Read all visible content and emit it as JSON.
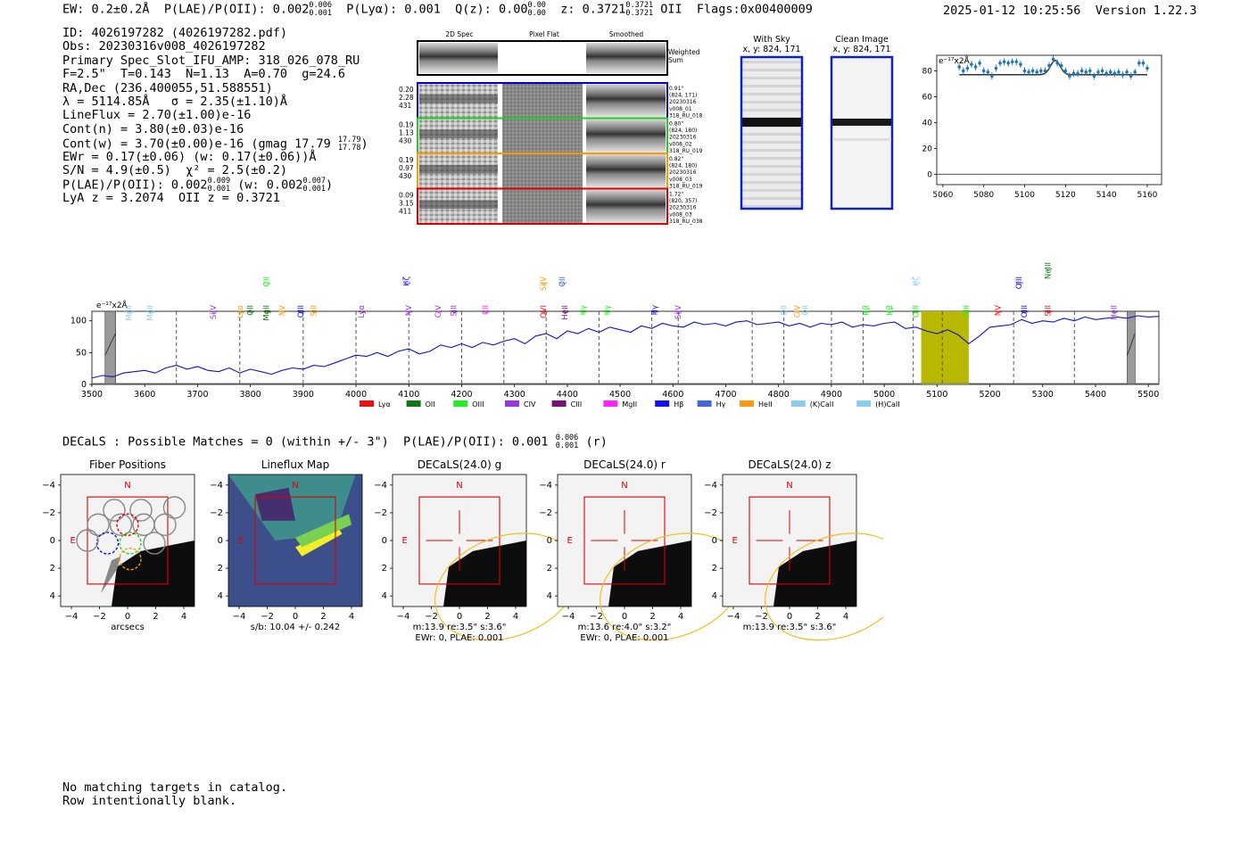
{
  "header": {
    "ew": "EW: 0.2±0.2Å",
    "plae_label": "P(LAE)/P(OII): 0.002",
    "plae_hi": "0.006",
    "plae_lo": "0.001",
    "plya": "P(Lyα): 0.001",
    "qz_label": "Q(z): 0.00",
    "qz_hi": "0.00",
    "qz_lo": "0.00",
    "z_label": "z: 0.3721",
    "z_hi": "0.3721",
    "z_lo": "0.3721",
    "z_line": "OII",
    "flags": "Flags:0x00400009",
    "timestamp": "2025-01-12 10:25:56",
    "version": "Version 1.22.3"
  },
  "info": {
    "id": "ID: 4026197282 (4026197282.pdf)",
    "obs": "Obs: 20230316v008_4026197282",
    "primary": "Primary Spec_Slot_IFU_AMP: 318_026_078_RU",
    "params": "F=2.5\"  T=0.143  N=1.13  A=0.70  g=24.6",
    "radec": "RA,Dec (236.400055,51.588551)",
    "lambda": "λ = 5114.85Å   σ = 2.35(±1.10)Å",
    "lineflux": "LineFlux = 2.70(±1.00)e-16",
    "contn": "Cont(n) = 3.80(±0.03)e-16",
    "contw": "Cont(w) = 3.70(±0.00)e-16 (gmag 17.79",
    "contw_hi": "17.79",
    "contw_lo": "17.78",
    "contw_end": ")",
    "ewr": "EWr = 0.17(±0.06) (w: 0.17(±0.06))Å",
    "sn": "S/N = 4.9(±0.5)  χ² = 2.5(±0.2)",
    "plae": "P(LAE)/P(OII): 0.002",
    "plae_hi": "0.009",
    "plae_lo": "0.001",
    "plae_w": "(w: 0.002",
    "plae_w_hi": "0.007",
    "plae_w_lo": "0.001",
    "plae_end": ")",
    "lyaz": "LyA z = 3.2074  OII z = 0.3721"
  },
  "cutouts": {
    "col_2d": "2D Spec",
    "col_flat": "Pixel Flat",
    "col_smooth": "Smoothed",
    "weighted": "Weighted",
    "sum": "Sum",
    "rows": [
      {
        "left": [
          "0.20",
          "2.28",
          "431"
        ],
        "right": [
          "0.91\"",
          "(824, 171)",
          "20230316",
          "v008_01",
          "318_RU_018"
        ],
        "color": "#0000cc"
      },
      {
        "left": [
          "0.19",
          "1.13",
          "430"
        ],
        "right": [
          "0.80\"",
          "(824, 180)",
          "20230316",
          "v008_02",
          "318_RU_019"
        ],
        "color": "#22cc22"
      },
      {
        "left": [
          "0.19",
          "0.97",
          "430"
        ],
        "right": [
          "0.82\"",
          "(824, 180)",
          "20230316",
          "v008_03",
          "318_RU_019"
        ],
        "color": "#ff9900"
      },
      {
        "left": [
          "0.09",
          "3.15",
          "411"
        ],
        "right": [
          "1.72\"",
          "(820, 357)",
          "20230316",
          "v008_03",
          "318_RU_038"
        ],
        "color": "#dd0000"
      }
    ]
  },
  "sky_panels": {
    "with_sky": "With Sky",
    "clean": "Clean Image",
    "coords": "x, y: 824, 171"
  },
  "zoom_chart": {
    "unit_label": "e⁻¹⁷x2Å",
    "x_ticks": [
      "5060",
      "5080",
      "5100",
      "5120",
      "5140",
      "5160"
    ],
    "y_ticks": [
      "0",
      "20",
      "40",
      "60",
      "80"
    ],
    "points": [
      [
        5068,
        83
      ],
      [
        5070,
        80
      ],
      [
        5072,
        82
      ],
      [
        5074,
        85
      ],
      [
        5076,
        83
      ],
      [
        5078,
        86
      ],
      [
        5080,
        80
      ],
      [
        5082,
        79
      ],
      [
        5084,
        76
      ],
      [
        5086,
        82
      ],
      [
        5088,
        86
      ],
      [
        5090,
        87
      ],
      [
        5092,
        86
      ],
      [
        5094,
        87
      ],
      [
        5096,
        87
      ],
      [
        5098,
        85
      ],
      [
        5100,
        80
      ],
      [
        5102,
        79
      ],
      [
        5104,
        80
      ],
      [
        5106,
        79
      ],
      [
        5108,
        80
      ],
      [
        5110,
        80
      ],
      [
        5112,
        84
      ],
      [
        5114,
        89
      ],
      [
        5116,
        86
      ],
      [
        5118,
        84
      ],
      [
        5120,
        80
      ],
      [
        5122,
        76
      ],
      [
        5124,
        78
      ],
      [
        5126,
        78
      ],
      [
        5128,
        80
      ],
      [
        5130,
        79
      ],
      [
        5132,
        80
      ],
      [
        5134,
        76
      ],
      [
        5136,
        79
      ],
      [
        5138,
        80
      ],
      [
        5140,
        78
      ],
      [
        5142,
        79
      ],
      [
        5144,
        78
      ],
      [
        5146,
        79
      ],
      [
        5148,
        77
      ],
      [
        5150,
        79
      ],
      [
        5152,
        76
      ],
      [
        5154,
        79
      ],
      [
        5156,
        86
      ],
      [
        5158,
        86
      ],
      [
        5160,
        82
      ]
    ],
    "fit_base": 77,
    "fit_peak": 88,
    "fit_center": 5115,
    "fit_sigma": 2.35
  },
  "chart_data": [
    {
      "type": "line",
      "title": "",
      "ylabel": "e⁻¹⁷x2Å",
      "xlim": [
        3500,
        5520
      ],
      "ylim": [
        0,
        115
      ],
      "x_ticks": [
        "3500",
        "3600",
        "3700",
        "3800",
        "3900",
        "4000",
        "4100",
        "4200",
        "4300",
        "4400",
        "4500",
        "4600",
        "4700",
        "4800",
        "4900",
        "5000",
        "5100",
        "5200",
        "5300",
        "5400",
        "5500"
      ],
      "y_ticks": [
        "0",
        "50",
        "100"
      ],
      "spectrum_x": [
        3500,
        3520,
        3540,
        3560,
        3580,
        3600,
        3620,
        3640,
        3660,
        3680,
        3700,
        3720,
        3740,
        3760,
        3780,
        3800,
        3820,
        3840,
        3860,
        3880,
        3900,
        3920,
        3940,
        3960,
        3980,
        4000,
        4020,
        4040,
        4060,
        4080,
        4100,
        4120,
        4140,
        4160,
        4180,
        4200,
        4220,
        4240,
        4260,
        4280,
        4300,
        4320,
        4340,
        4360,
        4380,
        4400,
        4420,
        4440,
        4460,
        4480,
        4500,
        4520,
        4540,
        4560,
        4580,
        4600,
        4620,
        4640,
        4660,
        4680,
        4700,
        4720,
        4740,
        4760,
        4780,
        4800,
        4820,
        4840,
        4860,
        4880,
        4900,
        4920,
        4940,
        4960,
        4980,
        5000,
        5020,
        5040,
        5060,
        5080,
        5100,
        5120,
        5140,
        5160,
        5180,
        5200,
        5220,
        5240,
        5260,
        5280,
        5300,
        5320,
        5340,
        5360,
        5380,
        5400,
        5420,
        5440,
        5460,
        5480,
        5500,
        5520
      ],
      "spectrum_y": [
        10,
        14,
        12,
        18,
        20,
        22,
        18,
        26,
        30,
        24,
        28,
        22,
        20,
        26,
        18,
        24,
        20,
        16,
        22,
        26,
        24,
        30,
        28,
        34,
        40,
        46,
        44,
        50,
        44,
        52,
        56,
        48,
        52,
        62,
        58,
        64,
        58,
        66,
        62,
        68,
        72,
        64,
        76,
        80,
        72,
        84,
        80,
        88,
        82,
        90,
        86,
        82,
        92,
        88,
        96,
        92,
        90,
        98,
        94,
        96,
        92,
        98,
        100,
        94,
        96,
        98,
        92,
        96,
        90,
        96,
        94,
        98,
        90,
        94,
        92,
        96,
        98,
        88,
        90,
        84,
        80,
        86,
        78,
        64,
        76,
        90,
        92,
        94,
        102,
        96,
        100,
        98,
        104,
        100,
        106,
        102,
        104,
        106,
        104,
        108,
        106,
        107
      ],
      "shaded_bands": [
        {
          "from": 3525,
          "to": 3545,
          "kind": "hatch"
        },
        {
          "from": 5070,
          "to": 5160,
          "kind": "emission"
        },
        {
          "from": 5460,
          "to": 5475,
          "kind": "hatch"
        }
      ],
      "legend": [
        {
          "label": "Lyα",
          "color": "#ee1111"
        },
        {
          "label": "OII",
          "color": "#117711"
        },
        {
          "label": "OIII",
          "color": "#22ee22"
        },
        {
          "label": "CIV",
          "color": "#9933dd"
        },
        {
          "label": "CIII",
          "color": "#771177"
        },
        {
          "label": "MgII",
          "color": "#ff22ff"
        },
        {
          "label": "Hβ",
          "color": "#1111ee"
        },
        {
          "label": "Hγ",
          "color": "#4466dd"
        },
        {
          "label": "HeII",
          "color": "#ff9911"
        },
        {
          "label": "(K)CaII",
          "color": "#88ccee"
        },
        {
          "label": "(H)CaII",
          "color": "#88ccee"
        }
      ],
      "line_markers": [
        {
          "label": "MgII",
          "x": 3570,
          "color": "#88ccee",
          "row": 1
        },
        {
          "label": "MgII",
          "x": 3610,
          "color": "#88ccee",
          "row": 1
        },
        {
          "label": "SiIV",
          "x": 3730,
          "color": "#9933dd",
          "row": 1
        },
        {
          "label": "Lyα",
          "x": 3780,
          "color": "#ff9911",
          "row": 1
        },
        {
          "label": "OII",
          "x": 3800,
          "color": "#117711",
          "row": 1
        },
        {
          "label": "MgII",
          "x": 3830,
          "color": "#117711",
          "row": 1
        },
        {
          "label": "OII",
          "x": 3830,
          "color": "#22ee22",
          "row": 3
        },
        {
          "label": "NV",
          "x": 3860,
          "color": "#ff9911",
          "row": 1
        },
        {
          "label": "OIII",
          "x": 3895,
          "color": "#1111ee",
          "row": 1
        },
        {
          "label": "SiII",
          "x": 3920,
          "color": "#ff9911",
          "row": 1
        },
        {
          "label": "Lyα",
          "x": 4010,
          "color": "#9933dd",
          "row": 1
        },
        {
          "label": "NV",
          "x": 4100,
          "color": "#9933dd",
          "row": 1
        },
        {
          "label": "Hζ",
          "x": 4095,
          "color": "#1111ee",
          "row": 3
        },
        {
          "label": "CIV",
          "x": 4155,
          "color": "#9933dd",
          "row": 1
        },
        {
          "label": "SiII",
          "x": 4185,
          "color": "#9933dd",
          "row": 1
        },
        {
          "label": "CII",
          "x": 4245,
          "color": "#ff22ff",
          "row": 1
        },
        {
          "label": "OVI",
          "x": 4355,
          "color": "#ee1111",
          "row": 1
        },
        {
          "label": "SiIV",
          "x": 4355,
          "color": "#ff9911",
          "row": 3
        },
        {
          "label": "OII",
          "x": 4390,
          "color": "#4466dd",
          "row": 3
        },
        {
          "label": "HeII",
          "x": 4395,
          "color": "#771177",
          "row": 1
        },
        {
          "label": "Hγ",
          "x": 4430,
          "color": "#22ee22",
          "row": 1
        },
        {
          "label": "Hγ",
          "x": 4475,
          "color": "#22ee22",
          "row": 1
        },
        {
          "label": "Hγ",
          "x": 4565,
          "color": "#1111ee",
          "row": 1
        },
        {
          "label": "SiIV",
          "x": 4610,
          "color": "#9933dd",
          "row": 1
        },
        {
          "label": "OII",
          "x": 4810,
          "color": "#88ccee",
          "row": 1
        },
        {
          "label": "CIV",
          "x": 4835,
          "color": "#ff9911",
          "row": 1
        },
        {
          "label": "OII",
          "x": 4850,
          "color": "#88ccee",
          "row": 1
        },
        {
          "label": "Hβ",
          "x": 4965,
          "color": "#22ee22",
          "row": 1
        },
        {
          "label": "Hβ",
          "x": 5010,
          "color": "#22ee22",
          "row": 1
        },
        {
          "label": "OIII",
          "x": 5060,
          "color": "#22ee22",
          "row": 1
        },
        {
          "label": "Hζ",
          "x": 5060,
          "color": "#88ccee",
          "row": 3
        },
        {
          "label": "OIII",
          "x": 5155,
          "color": "#22ee22",
          "row": 1
        },
        {
          "label": "NV",
          "x": 5215,
          "color": "#ee1111",
          "row": 1
        },
        {
          "label": "OIII",
          "x": 5255,
          "color": "#1111ee",
          "row": 3
        },
        {
          "label": "OIII",
          "x": 5265,
          "color": "#1111ee",
          "row": 1
        },
        {
          "label": "SiII",
          "x": 5310,
          "color": "#ee1111",
          "row": 1
        },
        {
          "label": "NeIII",
          "x": 5310,
          "color": "#117711",
          "row": 4
        },
        {
          "label": "HeII",
          "x": 5435,
          "color": "#9933dd",
          "row": 1
        }
      ],
      "dashed_lines": [
        3660,
        3780,
        3900,
        4000,
        4100,
        4200,
        4280,
        4360,
        4460,
        4560,
        4610,
        4750,
        4810,
        4900,
        4960,
        5055,
        5110,
        5245,
        5360
      ]
    }
  ],
  "decals": {
    "title": "DECaLS : Possible Matches = 0 (within +/- 3\")  P(LAE)/P(OII): 0.001",
    "hi": "0.006",
    "lo": "0.001",
    "band": "(r)",
    "panels": [
      {
        "title": "Fiber Positions",
        "caption1": "arcsecs",
        "caption2": ""
      },
      {
        "title": "Lineflux Map",
        "caption1": "s/b: 10.04 +/- 0.242",
        "caption2": ""
      },
      {
        "title": "DECaLS(24.0) g",
        "caption1": "m:13.9  re:3.5\"  s:3.6\"",
        "caption2": "EWr: 0, PLAE: 0.001"
      },
      {
        "title": "DECaLS(24.0) r",
        "caption1": "m:13.6  re:4.0\"  s:3.2\"",
        "caption2": "EWr: 0, PLAE: 0.001"
      },
      {
        "title": "DECaLS(24.0) z",
        "caption1": "m:13.9  re:3.5\"  s:3.6\"",
        "caption2": ""
      }
    ],
    "axis_ticks": [
      "−4",
      "−2",
      "0",
      "2",
      "4"
    ],
    "compass_n": "N",
    "compass_e": "E"
  },
  "footer": {
    "line1": "No matching targets in catalog.",
    "line2": "Row intentionally blank."
  }
}
